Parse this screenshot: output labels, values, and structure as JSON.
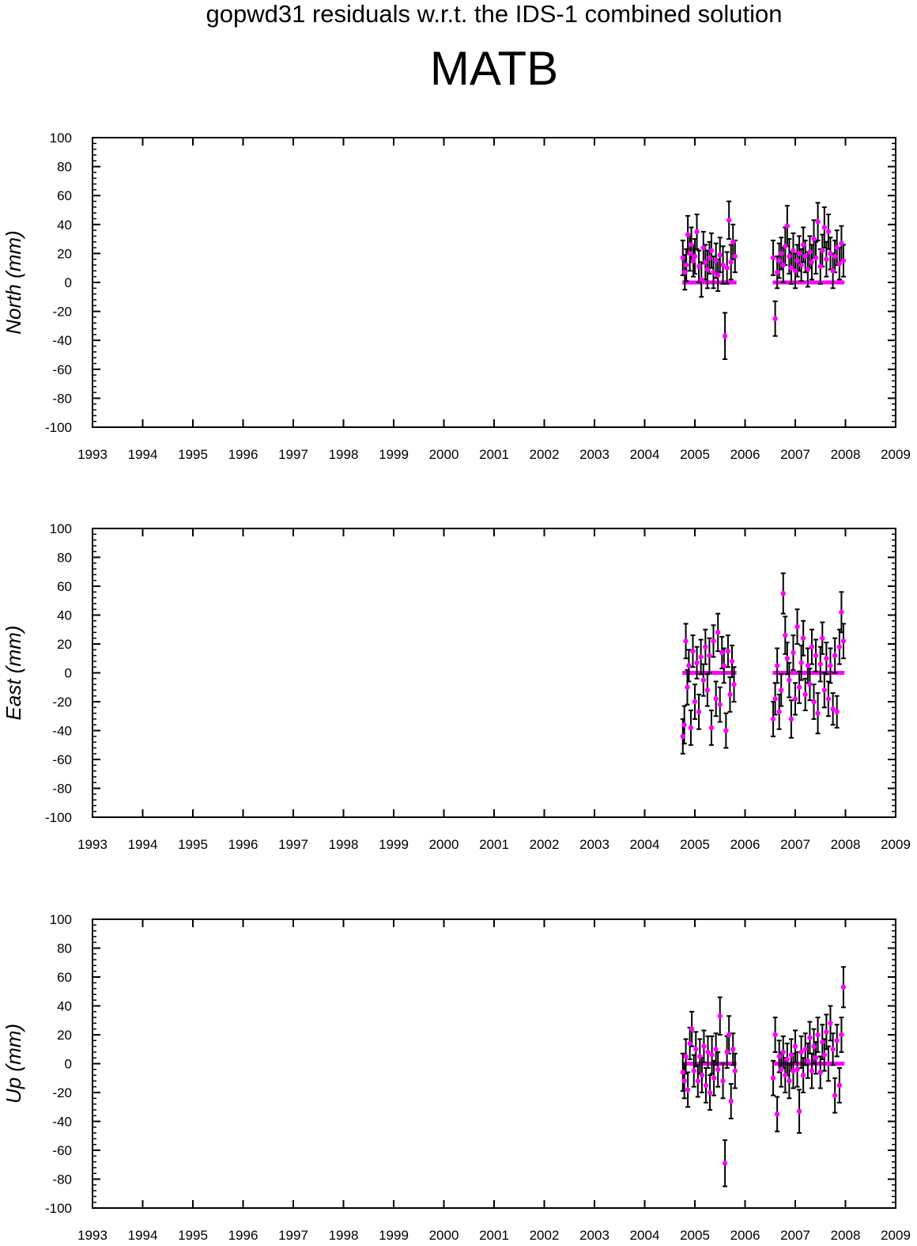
{
  "figure": {
    "suptitle": "gopwd31 residuals w.r.t. the IDS-1 combined solution",
    "station": "MATB"
  },
  "colors": {
    "marker": "#ff00ff",
    "errorbar": "#000000",
    "axes": "#000000"
  },
  "chart_data": [
    {
      "type": "scatter",
      "ylabel": "North (mm)",
      "xlim": [
        1993,
        2009
      ],
      "ylim": [
        -100,
        100
      ],
      "xticks": [
        "1993",
        "1994",
        "1995",
        "1996",
        "1997",
        "1998",
        "1999",
        "2000",
        "2001",
        "2002",
        "2003",
        "2004",
        "2005",
        "2006",
        "2007",
        "2008",
        "2009"
      ],
      "yticks": [
        "-100",
        "-80",
        "-60",
        "-40",
        "-20",
        "0",
        "20",
        "40",
        "60",
        "80",
        "100"
      ],
      "grid": false,
      "segments": [
        {
          "x_start": 2004.75,
          "x_end": 2005.83,
          "zero_line": 0
        },
        {
          "x_start": 2006.55,
          "x_end": 2007.98,
          "zero_line": 0
        }
      ],
      "points": [
        {
          "x": 2004.76,
          "y": 17,
          "err": 12
        },
        {
          "x": 2004.8,
          "y": 7,
          "err": 12
        },
        {
          "x": 2004.83,
          "y": 12,
          "err": 11
        },
        {
          "x": 2004.86,
          "y": 33,
          "err": 13
        },
        {
          "x": 2004.9,
          "y": 20,
          "err": 12
        },
        {
          "x": 2004.93,
          "y": 26,
          "err": 12
        },
        {
          "x": 2004.97,
          "y": 15,
          "err": 11
        },
        {
          "x": 2005.0,
          "y": 18,
          "err": 12
        },
        {
          "x": 2005.04,
          "y": 35,
          "err": 12
        },
        {
          "x": 2005.08,
          "y": 11,
          "err": 11
        },
        {
          "x": 2005.13,
          "y": 2,
          "err": 12
        },
        {
          "x": 2005.17,
          "y": 24,
          "err": 11
        },
        {
          "x": 2005.21,
          "y": 14,
          "err": 12
        },
        {
          "x": 2005.25,
          "y": 9,
          "err": 13
        },
        {
          "x": 2005.29,
          "y": 17,
          "err": 11
        },
        {
          "x": 2005.33,
          "y": 22,
          "err": 12
        },
        {
          "x": 2005.37,
          "y": 7,
          "err": 11
        },
        {
          "x": 2005.42,
          "y": 15,
          "err": 12
        },
        {
          "x": 2005.46,
          "y": 5,
          "err": 11
        },
        {
          "x": 2005.5,
          "y": 19,
          "err": 12
        },
        {
          "x": 2005.56,
          "y": 12,
          "err": 13
        },
        {
          "x": 2005.6,
          "y": -37,
          "err": 16
        },
        {
          "x": 2005.64,
          "y": 10,
          "err": 11
        },
        {
          "x": 2005.68,
          "y": 43,
          "err": 13
        },
        {
          "x": 2005.72,
          "y": 14,
          "err": 12
        },
        {
          "x": 2005.76,
          "y": 28,
          "err": 12
        },
        {
          "x": 2005.8,
          "y": 18,
          "err": 11
        },
        {
          "x": 2006.56,
          "y": 17,
          "err": 12
        },
        {
          "x": 2006.6,
          "y": -25,
          "err": 12
        },
        {
          "x": 2006.64,
          "y": 7,
          "err": 11
        },
        {
          "x": 2006.68,
          "y": 15,
          "err": 12
        },
        {
          "x": 2006.72,
          "y": 20,
          "err": 11
        },
        {
          "x": 2006.76,
          "y": 12,
          "err": 12
        },
        {
          "x": 2006.8,
          "y": 25,
          "err": 13
        },
        {
          "x": 2006.84,
          "y": 39,
          "err": 14
        },
        {
          "x": 2006.88,
          "y": 18,
          "err": 12
        },
        {
          "x": 2006.92,
          "y": 10,
          "err": 11
        },
        {
          "x": 2006.96,
          "y": 22,
          "err": 12
        },
        {
          "x": 2007.0,
          "y": 8,
          "err": 12
        },
        {
          "x": 2007.04,
          "y": 15,
          "err": 11
        },
        {
          "x": 2007.08,
          "y": 20,
          "err": 12
        },
        {
          "x": 2007.12,
          "y": 12,
          "err": 11
        },
        {
          "x": 2007.16,
          "y": 26,
          "err": 12
        },
        {
          "x": 2007.2,
          "y": 18,
          "err": 11
        },
        {
          "x": 2007.25,
          "y": 9,
          "err": 12
        },
        {
          "x": 2007.29,
          "y": 21,
          "err": 11
        },
        {
          "x": 2007.33,
          "y": 14,
          "err": 12
        },
        {
          "x": 2007.37,
          "y": 30,
          "err": 13
        },
        {
          "x": 2007.41,
          "y": 17,
          "err": 11
        },
        {
          "x": 2007.45,
          "y": 42,
          "err": 13
        },
        {
          "x": 2007.5,
          "y": 11,
          "err": 12
        },
        {
          "x": 2007.54,
          "y": 22,
          "err": 11
        },
        {
          "x": 2007.58,
          "y": 38,
          "err": 14
        },
        {
          "x": 2007.62,
          "y": 16,
          "err": 12
        },
        {
          "x": 2007.66,
          "y": 35,
          "err": 12
        },
        {
          "x": 2007.7,
          "y": 20,
          "err": 11
        },
        {
          "x": 2007.75,
          "y": 8,
          "err": 12
        },
        {
          "x": 2007.79,
          "y": 18,
          "err": 11
        },
        {
          "x": 2007.83,
          "y": 24,
          "err": 12
        },
        {
          "x": 2007.88,
          "y": 13,
          "err": 11
        },
        {
          "x": 2007.92,
          "y": 27,
          "err": 12
        },
        {
          "x": 2007.96,
          "y": 15,
          "err": 11
        }
      ]
    },
    {
      "type": "scatter",
      "ylabel": "East (mm)",
      "xlim": [
        1993,
        2009
      ],
      "ylim": [
        -100,
        100
      ],
      "xticks": [
        "1993",
        "1994",
        "1995",
        "1996",
        "1997",
        "1998",
        "1999",
        "2000",
        "2001",
        "2002",
        "2003",
        "2004",
        "2005",
        "2006",
        "2007",
        "2008",
        "2009"
      ],
      "yticks": [
        "-100",
        "-80",
        "-60",
        "-40",
        "-20",
        "0",
        "20",
        "40",
        "60",
        "80",
        "100"
      ],
      "grid": false,
      "segments": [
        {
          "x_start": 2004.75,
          "x_end": 2005.83,
          "zero_line": 0
        },
        {
          "x_start": 2006.55,
          "x_end": 2007.98,
          "zero_line": 0
        }
      ],
      "points": [
        {
          "x": 2004.76,
          "y": -44,
          "err": 12
        },
        {
          "x": 2004.79,
          "y": -36,
          "err": 13
        },
        {
          "x": 2004.82,
          "y": 22,
          "err": 12
        },
        {
          "x": 2004.85,
          "y": -10,
          "err": 12
        },
        {
          "x": 2004.88,
          "y": 5,
          "err": 11
        },
        {
          "x": 2004.92,
          "y": -38,
          "err": 12
        },
        {
          "x": 2004.96,
          "y": 15,
          "err": 11
        },
        {
          "x": 2005.0,
          "y": -20,
          "err": 12
        },
        {
          "x": 2005.04,
          "y": 7,
          "err": 11
        },
        {
          "x": 2005.08,
          "y": -27,
          "err": 12
        },
        {
          "x": 2005.12,
          "y": 11,
          "err": 12
        },
        {
          "x": 2005.17,
          "y": -5,
          "err": 11
        },
        {
          "x": 2005.21,
          "y": 18,
          "err": 12
        },
        {
          "x": 2005.25,
          "y": -12,
          "err": 11
        },
        {
          "x": 2005.29,
          "y": 12,
          "err": 12
        },
        {
          "x": 2005.33,
          "y": -38,
          "err": 12
        },
        {
          "x": 2005.37,
          "y": 22,
          "err": 11
        },
        {
          "x": 2005.42,
          "y": -18,
          "err": 12
        },
        {
          "x": 2005.46,
          "y": 28,
          "err": 13
        },
        {
          "x": 2005.5,
          "y": -22,
          "err": 12
        },
        {
          "x": 2005.54,
          "y": 14,
          "err": 11
        },
        {
          "x": 2005.58,
          "y": 5,
          "err": 12
        },
        {
          "x": 2005.62,
          "y": -40,
          "err": 12
        },
        {
          "x": 2005.66,
          "y": 15,
          "err": 11
        },
        {
          "x": 2005.7,
          "y": -15,
          "err": 12
        },
        {
          "x": 2005.74,
          "y": 8,
          "err": 11
        },
        {
          "x": 2005.78,
          "y": -8,
          "err": 12
        },
        {
          "x": 2006.56,
          "y": -32,
          "err": 12
        },
        {
          "x": 2006.6,
          "y": -18,
          "err": 11
        },
        {
          "x": 2006.64,
          "y": 5,
          "err": 12
        },
        {
          "x": 2006.68,
          "y": -27,
          "err": 12
        },
        {
          "x": 2006.72,
          "y": -12,
          "err": 11
        },
        {
          "x": 2006.76,
          "y": 55,
          "err": 14
        },
        {
          "x": 2006.8,
          "y": 26,
          "err": 13
        },
        {
          "x": 2006.84,
          "y": 10,
          "err": 11
        },
        {
          "x": 2006.88,
          "y": -5,
          "err": 12
        },
        {
          "x": 2006.92,
          "y": -32,
          "err": 13
        },
        {
          "x": 2006.96,
          "y": 14,
          "err": 12
        },
        {
          "x": 2007.0,
          "y": -18,
          "err": 11
        },
        {
          "x": 2007.04,
          "y": 32,
          "err": 12
        },
        {
          "x": 2007.08,
          "y": -10,
          "err": 11
        },
        {
          "x": 2007.12,
          "y": 7,
          "err": 12
        },
        {
          "x": 2007.16,
          "y": 24,
          "err": 12
        },
        {
          "x": 2007.2,
          "y": -15,
          "err": 11
        },
        {
          "x": 2007.25,
          "y": 5,
          "err": 12
        },
        {
          "x": 2007.29,
          "y": -8,
          "err": 11
        },
        {
          "x": 2007.33,
          "y": 18,
          "err": 12
        },
        {
          "x": 2007.37,
          "y": -20,
          "err": 12
        },
        {
          "x": 2007.41,
          "y": 12,
          "err": 11
        },
        {
          "x": 2007.45,
          "y": -28,
          "err": 14
        },
        {
          "x": 2007.5,
          "y": 6,
          "err": 12
        },
        {
          "x": 2007.54,
          "y": 24,
          "err": 11
        },
        {
          "x": 2007.58,
          "y": -12,
          "err": 12
        },
        {
          "x": 2007.62,
          "y": 10,
          "err": 11
        },
        {
          "x": 2007.66,
          "y": -18,
          "err": 12
        },
        {
          "x": 2007.7,
          "y": 5,
          "err": 12
        },
        {
          "x": 2007.75,
          "y": -25,
          "err": 11
        },
        {
          "x": 2007.79,
          "y": 12,
          "err": 12
        },
        {
          "x": 2007.83,
          "y": -27,
          "err": 11
        },
        {
          "x": 2007.88,
          "y": 18,
          "err": 12
        },
        {
          "x": 2007.92,
          "y": 42,
          "err": 14
        },
        {
          "x": 2007.96,
          "y": 22,
          "err": 12
        }
      ]
    },
    {
      "type": "scatter",
      "ylabel": "Up (mm)",
      "xlim": [
        1993,
        2009
      ],
      "ylim": [
        -100,
        100
      ],
      "xticks": [
        "1993",
        "1994",
        "1995",
        "1996",
        "1997",
        "1998",
        "1999",
        "2000",
        "2001",
        "2002",
        "2003",
        "2004",
        "2005",
        "2006",
        "2007",
        "2008",
        "2009"
      ],
      "yticks": [
        "-100",
        "-80",
        "-60",
        "-40",
        "-20",
        "0",
        "20",
        "40",
        "60",
        "80",
        "100"
      ],
      "grid": false,
      "segments": [
        {
          "x_start": 2004.75,
          "x_end": 2005.83,
          "zero_line": 0
        },
        {
          "x_start": 2006.55,
          "x_end": 2007.98,
          "zero_line": 0
        }
      ],
      "points": [
        {
          "x": 2004.76,
          "y": -6,
          "err": 13
        },
        {
          "x": 2004.79,
          "y": -12,
          "err": 12
        },
        {
          "x": 2004.82,
          "y": 5,
          "err": 12
        },
        {
          "x": 2004.86,
          "y": -18,
          "err": 12
        },
        {
          "x": 2004.9,
          "y": 14,
          "err": 11
        },
        {
          "x": 2004.94,
          "y": 24,
          "err": 12
        },
        {
          "x": 2004.98,
          "y": -5,
          "err": 11
        },
        {
          "x": 2005.02,
          "y": 10,
          "err": 12
        },
        {
          "x": 2005.06,
          "y": -12,
          "err": 11
        },
        {
          "x": 2005.1,
          "y": 5,
          "err": 12
        },
        {
          "x": 2005.14,
          "y": -8,
          "err": 12
        },
        {
          "x": 2005.18,
          "y": 12,
          "err": 11
        },
        {
          "x": 2005.22,
          "y": -15,
          "err": 12
        },
        {
          "x": 2005.26,
          "y": 8,
          "err": 11
        },
        {
          "x": 2005.3,
          "y": -20,
          "err": 12
        },
        {
          "x": 2005.34,
          "y": 6,
          "err": 13
        },
        {
          "x": 2005.38,
          "y": -10,
          "err": 12
        },
        {
          "x": 2005.42,
          "y": 10,
          "err": 11
        },
        {
          "x": 2005.46,
          "y": -4,
          "err": 12
        },
        {
          "x": 2005.5,
          "y": 33,
          "err": 13
        },
        {
          "x": 2005.56,
          "y": -12,
          "err": 12
        },
        {
          "x": 2005.6,
          "y": -69,
          "err": 16
        },
        {
          "x": 2005.64,
          "y": 8,
          "err": 11
        },
        {
          "x": 2005.68,
          "y": 20,
          "err": 13
        },
        {
          "x": 2005.72,
          "y": -26,
          "err": 12
        },
        {
          "x": 2005.76,
          "y": 10,
          "err": 11
        },
        {
          "x": 2005.8,
          "y": -5,
          "err": 12
        },
        {
          "x": 2006.56,
          "y": -10,
          "err": 12
        },
        {
          "x": 2006.6,
          "y": 20,
          "err": 12
        },
        {
          "x": 2006.64,
          "y": -35,
          "err": 12
        },
        {
          "x": 2006.68,
          "y": 5,
          "err": 11
        },
        {
          "x": 2006.72,
          "y": -4,
          "err": 12
        },
        {
          "x": 2006.76,
          "y": 8,
          "err": 11
        },
        {
          "x": 2006.8,
          "y": -8,
          "err": 12
        },
        {
          "x": 2006.84,
          "y": 3,
          "err": 11
        },
        {
          "x": 2006.88,
          "y": -12,
          "err": 12
        },
        {
          "x": 2006.92,
          "y": 6,
          "err": 11
        },
        {
          "x": 2006.96,
          "y": -5,
          "err": 12
        },
        {
          "x": 2007.0,
          "y": 12,
          "err": 11
        },
        {
          "x": 2007.04,
          "y": -4,
          "err": 12
        },
        {
          "x": 2007.08,
          "y": -33,
          "err": 15
        },
        {
          "x": 2007.12,
          "y": 8,
          "err": 11
        },
        {
          "x": 2007.16,
          "y": -8,
          "err": 12
        },
        {
          "x": 2007.2,
          "y": 10,
          "err": 11
        },
        {
          "x": 2007.25,
          "y": 2,
          "err": 12
        },
        {
          "x": 2007.29,
          "y": 18,
          "err": 11
        },
        {
          "x": 2007.33,
          "y": -5,
          "err": 12
        },
        {
          "x": 2007.37,
          "y": 12,
          "err": 12
        },
        {
          "x": 2007.41,
          "y": 4,
          "err": 11
        },
        {
          "x": 2007.45,
          "y": 20,
          "err": 12
        },
        {
          "x": 2007.5,
          "y": -6,
          "err": 11
        },
        {
          "x": 2007.54,
          "y": 15,
          "err": 12
        },
        {
          "x": 2007.58,
          "y": 6,
          "err": 11
        },
        {
          "x": 2007.62,
          "y": 22,
          "err": 12
        },
        {
          "x": 2007.66,
          "y": 0,
          "err": 12
        },
        {
          "x": 2007.7,
          "y": 28,
          "err": 12
        },
        {
          "x": 2007.75,
          "y": 10,
          "err": 11
        },
        {
          "x": 2007.79,
          "y": -22,
          "err": 12
        },
        {
          "x": 2007.83,
          "y": 16,
          "err": 11
        },
        {
          "x": 2007.88,
          "y": -15,
          "err": 12
        },
        {
          "x": 2007.92,
          "y": 20,
          "err": 12
        },
        {
          "x": 2007.96,
          "y": 53,
          "err": 14
        }
      ]
    }
  ]
}
